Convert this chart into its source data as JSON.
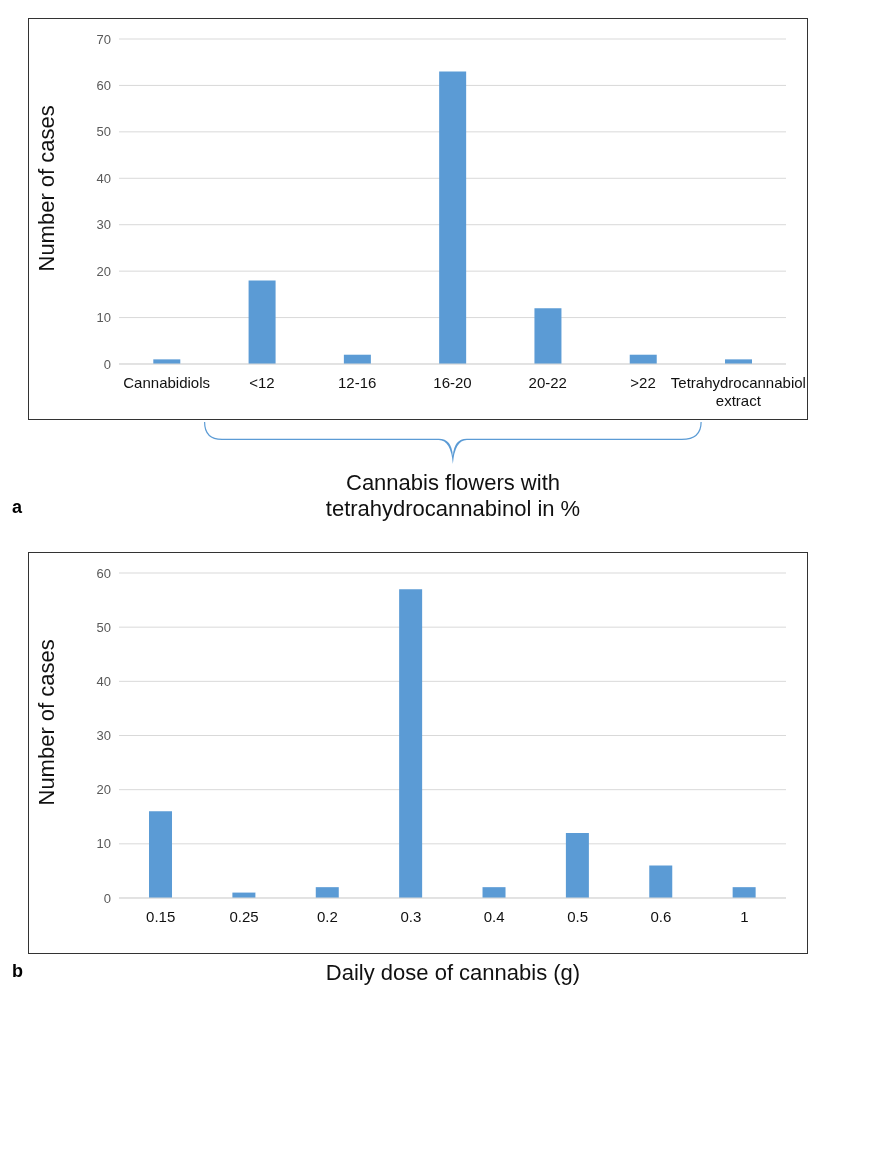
{
  "chart_data": [
    {
      "type": "bar",
      "categories": [
        "Cannabidiols",
        "<12",
        "12-16",
        "16-20",
        "20-22",
        ">22",
        "Tetrahydrocannabiol extract"
      ],
      "values": [
        1,
        18,
        2,
        63,
        12,
        2,
        1
      ],
      "color": "#5b9bd5",
      "ylim": [
        0,
        70
      ],
      "yticks": [
        0,
        10,
        20,
        30,
        40,
        50,
        60,
        70
      ],
      "grid": "y",
      "xlabel": "Cannabis flowers with tetrahydrocannabinol in %",
      "ylabel": "Number of cases",
      "annotations": [
        "a"
      ]
    },
    {
      "type": "bar",
      "categories": [
        "0.15",
        "0.25",
        "0.2",
        "0.3",
        "0.4",
        "0.5",
        "0.6",
        "1"
      ],
      "values": [
        16,
        1,
        2,
        57,
        2,
        12,
        6,
        2
      ],
      "color": "#5b9bd5",
      "ylim": [
        0,
        60
      ],
      "yticks": [
        0,
        10,
        20,
        30,
        40,
        50,
        60
      ],
      "grid": "y",
      "xlabel": "Daily dose of cannabis (g)",
      "ylabel": "Number of cases",
      "annotations": [
        "b"
      ]
    }
  ]
}
